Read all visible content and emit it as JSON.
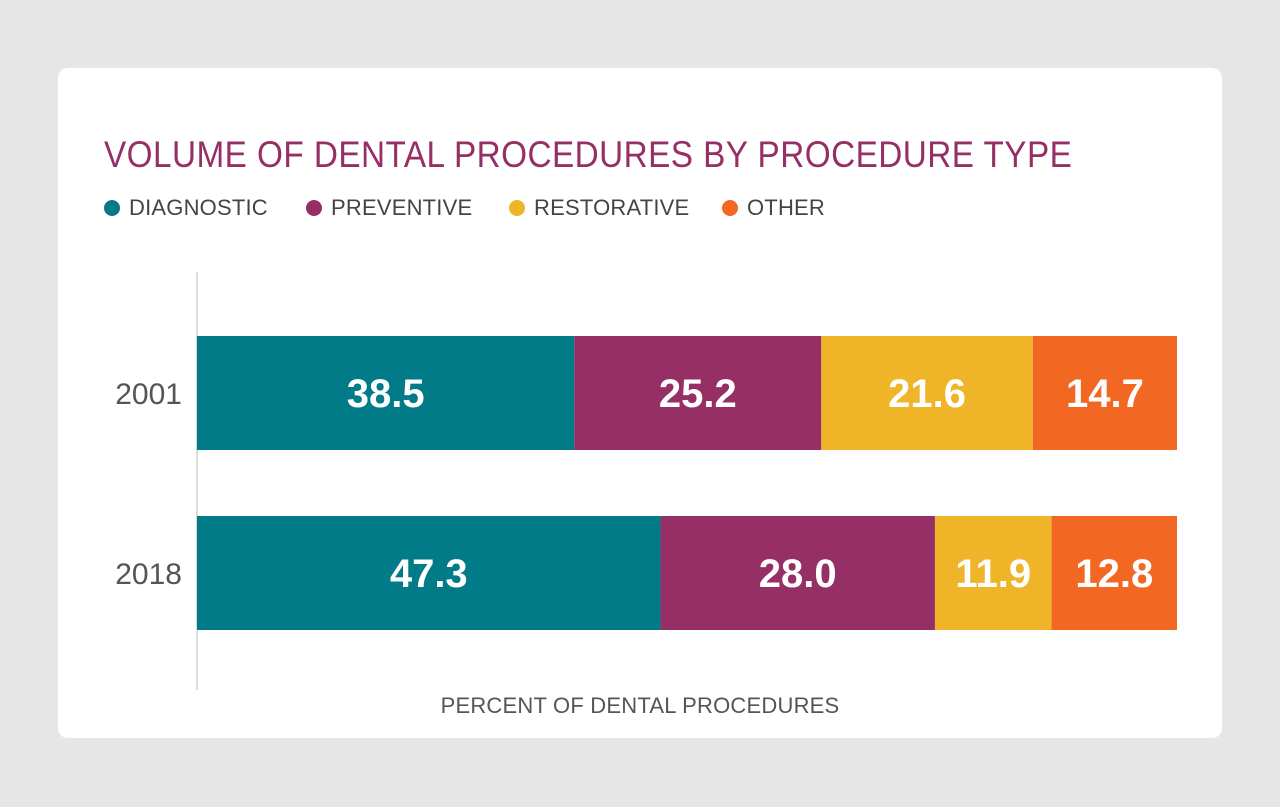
{
  "chart_data": {
    "type": "bar",
    "orientation": "horizontal",
    "stacked": true,
    "title": "VOLUME OF DENTAL PROCEDURES BY PROCEDURE TYPE",
    "xlabel": "PERCENT OF DENTAL PROCEDURES",
    "ylabel": "",
    "categories": [
      "2001",
      "2018"
    ],
    "series": [
      {
        "name": "DIAGNOSTIC",
        "color": "#007b87",
        "values": [
          38.5,
          47.3
        ]
      },
      {
        "name": "PREVENTIVE",
        "color": "#952f66",
        "values": [
          25.2,
          28.0
        ]
      },
      {
        "name": "RESTORATIVE",
        "color": "#efb428",
        "values": [
          21.6,
          11.9
        ]
      },
      {
        "name": "OTHER",
        "color": "#f26722",
        "values": [
          14.7,
          12.8
        ]
      }
    ],
    "value_labels": [
      [
        "38.5",
        "47.3"
      ],
      [
        "25.2",
        "28.0"
      ],
      [
        "21.6",
        "11.9"
      ],
      [
        "14.7",
        "12.8"
      ]
    ],
    "grid": false,
    "legend_position": "top-left"
  }
}
